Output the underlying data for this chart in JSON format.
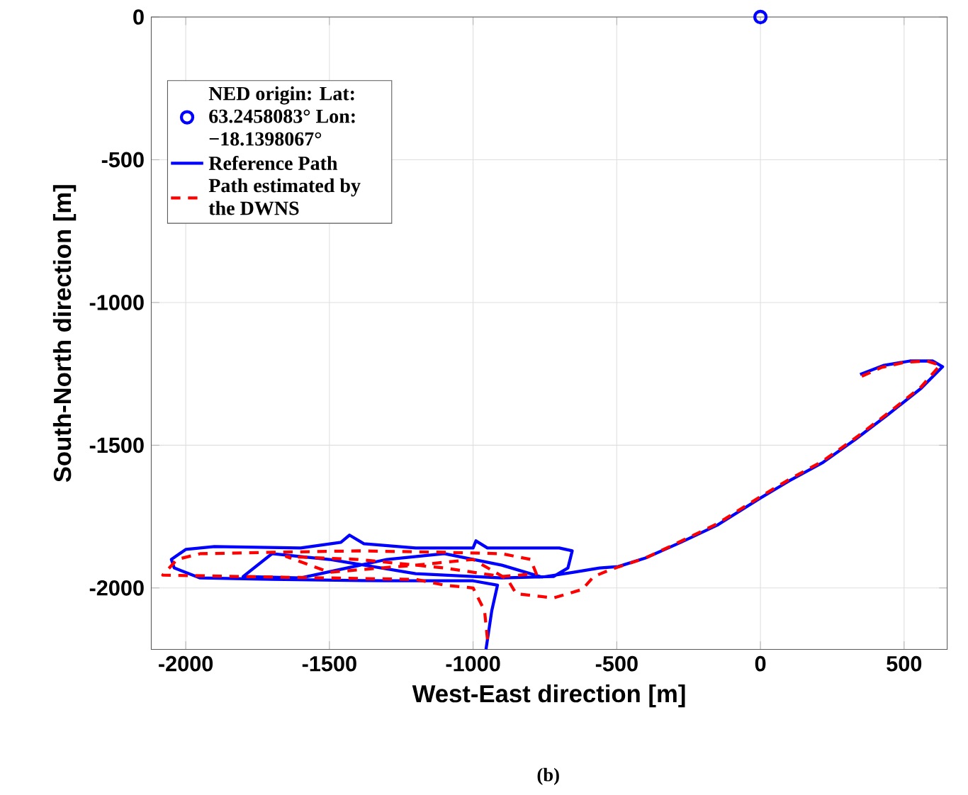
{
  "chart_data": {
    "type": "line",
    "xlabel": "West-East direction [m]",
    "ylabel": "South-North direction [m]",
    "annotations": [
      "(b)"
    ],
    "xlim": [
      -2120,
      650
    ],
    "ylim": [
      -2215,
      0
    ],
    "xticks": [
      -2000,
      -1500,
      -1000,
      -500,
      0,
      500
    ],
    "yticks": [
      -2000,
      -1500,
      -1000,
      -500,
      0
    ],
    "grid": true,
    "legend": "top left",
    "series": [
      {
        "name": "NED origin: Lat: 63.2458083° Lon: −18.1398067°",
        "type": "scatter",
        "marker": "circle",
        "color": "#0000ff",
        "x": [
          0
        ],
        "values": [
          0
        ]
      },
      {
        "name": "Reference Path",
        "line_style": "solid",
        "color": "#0000ff",
        "x": [
          -955,
          -935,
          -915,
          -1000,
          -1300,
          -1700,
          -1950,
          -2040,
          -2050,
          -2000,
          -1900,
          -1600,
          -1460,
          -1430,
          -1380,
          -1200,
          -1000,
          -990,
          -950,
          -700,
          -655,
          -670,
          -720,
          -900,
          -1200,
          -1500,
          -1700,
          -1800,
          -1600,
          -1300,
          -1100,
          -900,
          -760,
          -650,
          -560,
          -495,
          -400,
          -277,
          -150,
          0,
          100,
          218,
          330,
          441,
          560,
          634,
          600,
          520,
          430,
          347
        ],
        "values": [
          -2215,
          -2080,
          -1990,
          -1975,
          -1975,
          -1970,
          -1965,
          -1930,
          -1900,
          -1865,
          -1855,
          -1860,
          -1840,
          -1815,
          -1845,
          -1860,
          -1860,
          -1835,
          -1860,
          -1860,
          -1870,
          -1930,
          -1960,
          -1965,
          -1950,
          -1900,
          -1880,
          -1960,
          -1965,
          -1900,
          -1880,
          -1920,
          -1962,
          -1945,
          -1930,
          -1925,
          -1895,
          -1840,
          -1780,
          -1685,
          -1625,
          -1560,
          -1480,
          -1395,
          -1300,
          -1225,
          -1205,
          -1205,
          -1220,
          -1252
        ]
      },
      {
        "name": "Path estimated by the DWNS",
        "line_style": "dashed",
        "color": "#ff0000",
        "x": [
          -950,
          -960,
          -1000,
          -1100,
          -1200,
          -1500,
          -1800,
          -2080,
          -2030,
          -1950,
          -1700,
          -1400,
          -1100,
          -900,
          -800,
          -780,
          -900,
          -1100,
          -1400,
          -1650,
          -1500,
          -1200,
          -1000,
          -880,
          -850,
          -720,
          -620,
          -580,
          -520,
          -400,
          -280,
          -150,
          0,
          100,
          218,
          330,
          441,
          560,
          625,
          580,
          500,
          420,
          345
        ],
        "values": [
          -2180,
          -2080,
          -2000,
          -1990,
          -1970,
          -1965,
          -1960,
          -1955,
          -1900,
          -1880,
          -1875,
          -1870,
          -1875,
          -1880,
          -1900,
          -1950,
          -1960,
          -1930,
          -1900,
          -1890,
          -1945,
          -1920,
          -1900,
          -1970,
          -2020,
          -2035,
          -2005,
          -1960,
          -1935,
          -1895,
          -1838,
          -1775,
          -1680,
          -1620,
          -1555,
          -1475,
          -1390,
          -1295,
          -1220,
          -1205,
          -1210,
          -1228,
          -1262
        ]
      }
    ]
  }
}
